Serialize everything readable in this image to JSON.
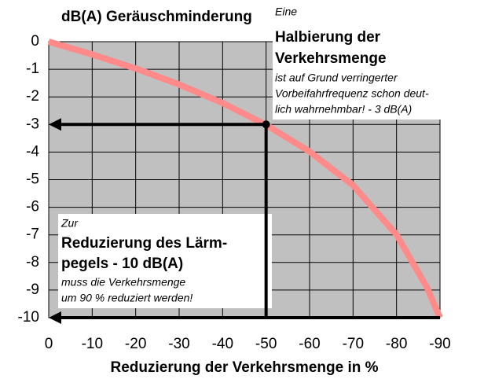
{
  "chart_data": {
    "type": "line",
    "title": "dB(A) Geräuschminderung",
    "x_label": "Reduzierung der Verkehrsmenge in %",
    "x": [
      0,
      -10,
      -20,
      -30,
      -40,
      -50,
      -60,
      -70,
      -80,
      -87,
      -90
    ],
    "series": [
      {
        "name": "Geräuschminderung",
        "color": "#ff8a8a",
        "values": [
          0,
          -0.46,
          -0.97,
          -1.55,
          -2.22,
          -3.01,
          -3.98,
          -5.2,
          -6.99,
          -8.9,
          -10
        ]
      }
    ],
    "xlim": [
      0,
      -90
    ],
    "xticks": [
      0,
      -10,
      -20,
      -30,
      -40,
      -50,
      -60,
      -70,
      -80,
      -90
    ],
    "ylim": [
      -10,
      0
    ],
    "yticks": [
      0,
      -1,
      -2,
      -3,
      -4,
      -5,
      -6,
      -7,
      -8,
      -9,
      -10
    ],
    "grid": true,
    "highlight": {
      "x": -50,
      "y": -3
    },
    "annotations": [
      [
        "Eine",
        "Halbierung der",
        "Verkehrsmenge",
        "ist auf Grund verringerter",
        "Vorbeifahrfrequenz schon deut-",
        "lich wahrnehmbar! - 3 dB(A)"
      ],
      [
        "Zur",
        "Reduzierung des Lärm-",
        "pegels - 10 dB(A)",
        "muss die Verkehrsmenge",
        "um 90 % reduziert werden!"
      ]
    ]
  }
}
